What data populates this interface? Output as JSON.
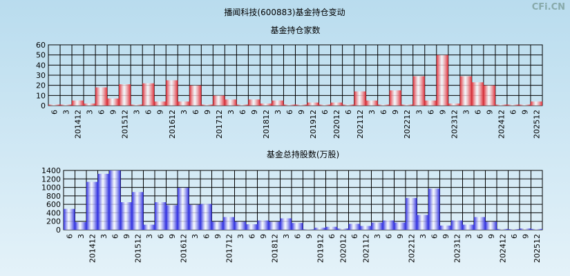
{
  "title": "播闻科技(600883)基金持仓变动",
  "watermark": "CFi.CN",
  "chart_data": [
    {
      "type": "bar",
      "title": "基金持仓家数",
      "color": "#e0303a",
      "categories": [
        "6",
        "3",
        "201412",
        "3",
        "6",
        "9",
        "201512",
        "3",
        "6",
        "9",
        "201612",
        "3",
        "6",
        "9",
        "201712",
        "3",
        "6",
        "9",
        "201812",
        "3",
        "6",
        "9",
        "201912",
        "6",
        "202012",
        "6",
        "202112",
        "3",
        "6",
        "9",
        "202212",
        "3",
        "6",
        "9",
        "202312",
        "3",
        "6",
        "9",
        "202412",
        "6",
        "9",
        "202512"
      ],
      "values": [
        1,
        1,
        5,
        2,
        18,
        7,
        21,
        1,
        22,
        4,
        25,
        4,
        20,
        1,
        10,
        6,
        1,
        6,
        2,
        5,
        1,
        1,
        3,
        1,
        3,
        1,
        14,
        5,
        1,
        15,
        1,
        29,
        5,
        50,
        2,
        29,
        23,
        20,
        1,
        1,
        1,
        4
      ],
      "ylim": [
        0,
        60
      ],
      "yticks": [
        0,
        10,
        20,
        30,
        40,
        50,
        60
      ],
      "grid": true
    },
    {
      "type": "bar",
      "title": "基金总持股数(万股)",
      "color": "#3030e0",
      "categories": [
        "6",
        "3",
        "201412",
        "3",
        "6",
        "9",
        "201512",
        "3",
        "6",
        "9",
        "201612",
        "3",
        "6",
        "9",
        "201712",
        "3",
        "6",
        "9",
        "201812",
        "3",
        "6",
        "9",
        "201912",
        "6",
        "202012",
        "6",
        "202112",
        "3",
        "6",
        "9",
        "202212",
        "3",
        "6",
        "9",
        "202312",
        "3",
        "6",
        "9",
        "202412",
        "6",
        "9",
        "202512"
      ],
      "values": [
        493,
        180,
        1130,
        1320,
        1400,
        650,
        890,
        120,
        650,
        580,
        990,
        590,
        610,
        190,
        300,
        190,
        130,
        220,
        190,
        270,
        160,
        10,
        50,
        70,
        30,
        140,
        90,
        170,
        220,
        170,
        750,
        350,
        970,
        100,
        220,
        120,
        300,
        190,
        20,
        15,
        30,
        20
      ],
      "ylim": [
        0,
        1400
      ],
      "yticks": [
        0,
        200,
        400,
        600,
        800,
        1000,
        1200,
        1400
      ],
      "grid": true
    }
  ]
}
